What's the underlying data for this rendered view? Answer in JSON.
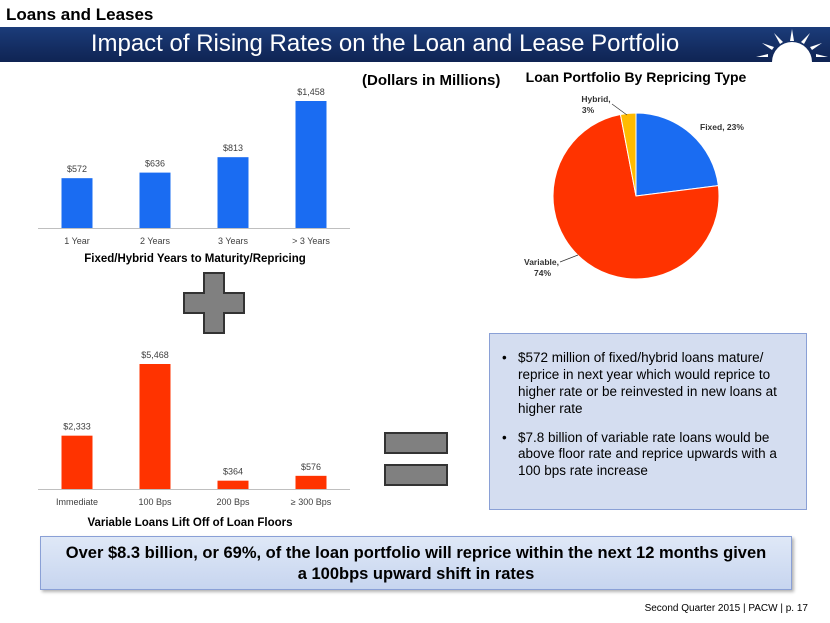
{
  "header": {
    "section_title": "Loans and Leases",
    "banner_title": "Impact of Rising Rates on the Loan and Lease Portfolio"
  },
  "dollars_note": "(Dollars in Millions)",
  "colors": {
    "blue_bar": "#1a6cf2",
    "red_bar": "#ff3300",
    "pie_fixed": "#1a6cf2",
    "pie_variable": "#ff3300",
    "pie_hybrid": "#ffbb00",
    "banner": "#142d62"
  },
  "chart_data": [
    {
      "type": "bar",
      "id": "fixed",
      "title": "",
      "categories": [
        "1 Year",
        "2 Years",
        "3 Years",
        "> 3 Years"
      ],
      "values": [
        572,
        636,
        813,
        1458
      ],
      "value_labels": [
        "$572",
        "$636",
        "$813",
        "$1,458"
      ],
      "xlabel": "Fixed/Hybrid Years to Maturity/Repricing",
      "ylabel": "",
      "ylim": [
        0,
        1458
      ],
      "grid": false
    },
    {
      "type": "pie",
      "id": "repricing",
      "title": "Loan Portfolio By Repricing Type",
      "slices": [
        {
          "name": "Fixed",
          "value": 23,
          "label": "Fixed, 23%"
        },
        {
          "name": "Variable",
          "value": 74,
          "label_line1": "Variable,",
          "label_line2": "74%"
        },
        {
          "name": "Hybrid",
          "value": 3,
          "label_line1": "Hybrid,",
          "label_line2": "3%"
        }
      ]
    },
    {
      "type": "bar",
      "id": "variable",
      "title": "",
      "categories": [
        "Immediate",
        "100 Bps",
        "200 Bps",
        "≥ 300 Bps"
      ],
      "values": [
        2333,
        5468,
        364,
        576
      ],
      "value_labels": [
        "$2,333",
        "$5,468",
        "$364",
        "$576"
      ],
      "xlabel": "Variable Loans Lift Off of Loan Floors",
      "ylabel": "",
      "ylim": [
        0,
        5468
      ],
      "grid": false
    }
  ],
  "bullets": [
    "$572 million of fixed/hybrid loans mature/ reprice in next year which would reprice to higher rate or be reinvested in new loans at higher rate",
    "$7.8 billion of variable rate loans would be above floor rate and reprice upwards with a 100 bps rate increase"
  ],
  "summary": "Over $8.3 billion, or 69%, of the loan portfolio will reprice within the next 12 months given a 100bps upward shift in rates",
  "footer": "Second Quarter 2015 | PACW | p. 17"
}
